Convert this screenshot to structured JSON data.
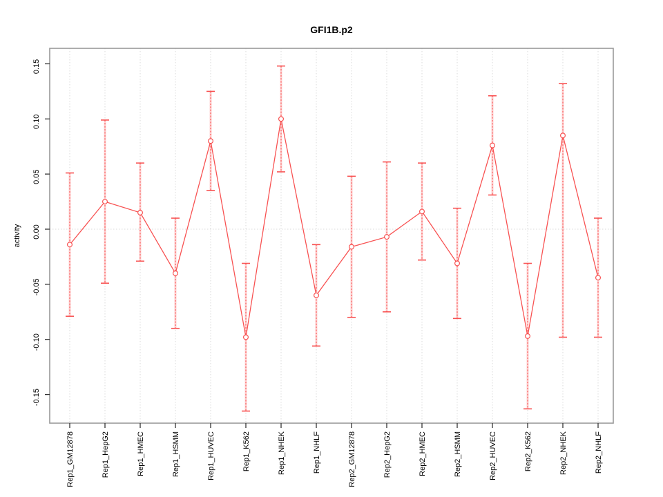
{
  "title": "GFI1B.p2",
  "chart_data": {
    "type": "line",
    "title": "GFI1B.p2",
    "xlabel": "",
    "ylabel": "activity",
    "ylim": [
      -0.17,
      0.16
    ],
    "yticks": [
      0.15,
      0.1,
      0.05,
      0.0,
      -0.05,
      -0.1,
      -0.15
    ],
    "ytick_labels": [
      "0.15",
      "0.10",
      "0.05",
      "0.00",
      "-0.05",
      "-0.10",
      "-0.15"
    ],
    "grid": "vertical dotted gridline at every category; horizontal dotted gridline at y=0",
    "legend_position": "none",
    "marker": "open-circle",
    "categories": [
      "Rep1_GM12878",
      "Rep1_HepG2",
      "Rep1_HMEC",
      "Rep1_HSMM",
      "Rep1_HUVEC",
      "Rep1_K562",
      "Rep1_NHEK",
      "Rep1_NHLF",
      "Rep2_GM12878",
      "Rep2_HepG2",
      "Rep2_HMEC",
      "Rep2_HSMM",
      "Rep2_HUVEC",
      "Rep2_K562",
      "Rep2_NHEK",
      "Rep2_NHLF"
    ],
    "series": [
      {
        "name": "activity",
        "values": [
          -0.014,
          0.025,
          0.015,
          -0.04,
          0.08,
          -0.098,
          0.1,
          -0.06,
          -0.016,
          -0.007,
          0.016,
          -0.031,
          0.076,
          -0.097,
          0.085,
          -0.044
        ],
        "ci_high": [
          0.051,
          0.099,
          0.06,
          0.01,
          0.125,
          -0.031,
          0.148,
          -0.014,
          0.048,
          0.061,
          0.06,
          0.019,
          0.121,
          -0.031,
          0.132,
          0.01
        ],
        "ci_low": [
          -0.079,
          -0.049,
          -0.029,
          -0.09,
          0.035,
          -0.165,
          0.052,
          -0.106,
          -0.08,
          -0.075,
          -0.028,
          -0.081,
          0.031,
          -0.163,
          -0.098,
          -0.098
        ]
      }
    ]
  },
  "colors": {
    "series_line": "#f85252",
    "error_band": "#ffb0b0",
    "gridline": "#d9d9d9",
    "frame": "#999999",
    "tick": "#333333",
    "text": "#000000",
    "background": "#ffffff"
  }
}
